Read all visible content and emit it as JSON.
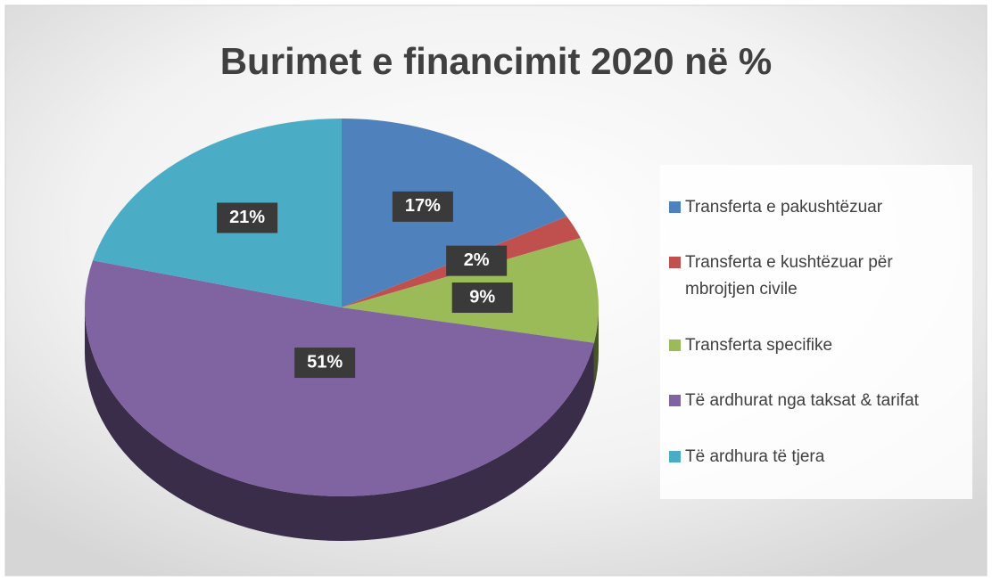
{
  "chart_data": {
    "type": "pie",
    "title": "Burimet e financimit 2020 në %",
    "categories": [
      "Transferta e pakushtëzuar",
      "Transferta e kushtëzuar për mbrojtjen civile",
      "Transferta specifike",
      "Të ardhurat nga taksat & tarifat",
      "Të ardhura të tjera"
    ],
    "values": [
      17,
      2,
      9,
      51,
      21
    ],
    "value_labels": [
      "17%",
      "2%",
      "9%",
      "51%",
      "21%"
    ],
    "colors": [
      "#4f81bd",
      "#c0504d",
      "#9bbb59",
      "#8064a2",
      "#4bacc6"
    ],
    "legend": "right"
  }
}
